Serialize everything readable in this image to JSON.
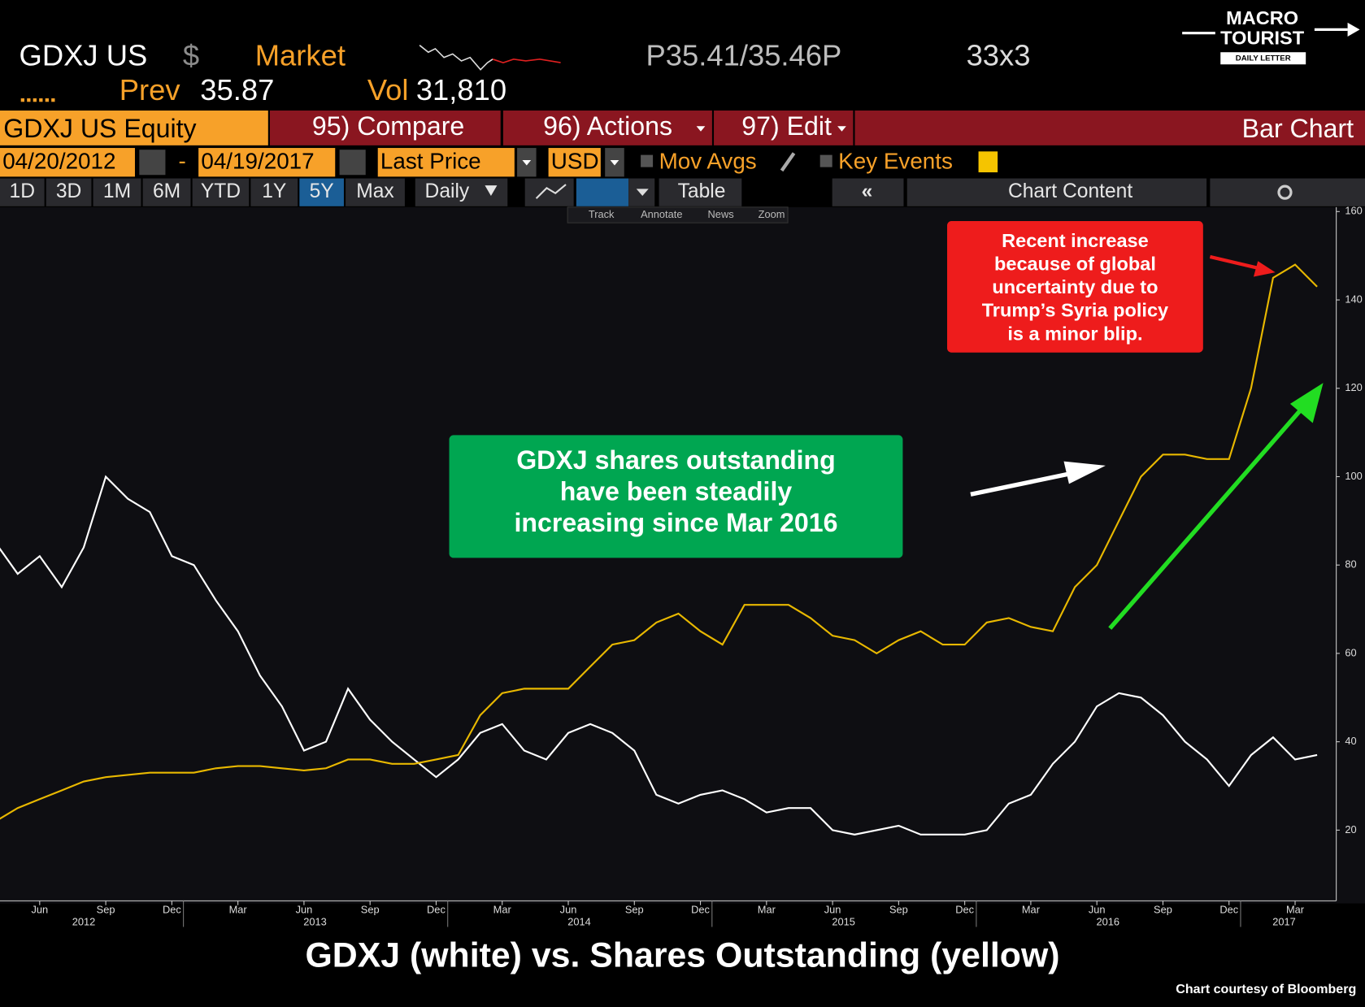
{
  "header": {
    "ticker": "GDXJ US",
    "currency": "$",
    "source": "Market",
    "quote": "P35.41/35.46P",
    "size": "33x3",
    "prev_label": "Prev",
    "prev": "35.87",
    "vol_label": "Vol",
    "vol": "31,810"
  },
  "logo": {
    "line1": "MACRO",
    "line2": "TOURIST",
    "line3": "DAILY LETTER"
  },
  "toolbar": {
    "security": "GDXJ US Equity",
    "compare": "95) Compare",
    "actions": "96) Actions",
    "edit": "97) Edit",
    "chart_kind": "Bar Chart",
    "start_date": "04/20/2012",
    "date_sep": "-",
    "end_date": "04/19/2017",
    "field": "Last Price",
    "ccy": "USD",
    "mov_avgs": "Mov Avgs",
    "key_events": "Key Events",
    "ranges": [
      "1D",
      "3D",
      "1M",
      "6M",
      "YTD",
      "1Y",
      "5Y",
      "Max"
    ],
    "frequency": "Daily",
    "table": "Table",
    "chart_content": "Chart Content",
    "tools": [
      "Track",
      "Annotate",
      "News",
      "Zoom"
    ]
  },
  "chart_data": {
    "type": "line",
    "title": "GDXJ (white) vs. Shares Outstanding (yellow)",
    "credit": "Chart courtesy of Bloomberg",
    "annotations": [
      {
        "lines": [
          "Recent increase",
          "because of global",
          "uncertainty due to",
          "Trump’s Syria policy",
          "is a minor blip."
        ],
        "color": "#ee1c1c"
      },
      {
        "lines": [
          "GDXJ shares outstanding",
          "have been steadily",
          "increasing since Mar 2016"
        ],
        "color": "#00a651"
      }
    ],
    "x": [
      "2012-04",
      "2012-05",
      "2012-06",
      "2012-07",
      "2012-08",
      "2012-09",
      "2012-10",
      "2012-11",
      "2012-12",
      "2013-01",
      "2013-02",
      "2013-03",
      "2013-04",
      "2013-05",
      "2013-06",
      "2013-07",
      "2013-08",
      "2013-09",
      "2013-10",
      "2013-11",
      "2013-12",
      "2014-01",
      "2014-02",
      "2014-03",
      "2014-04",
      "2014-05",
      "2014-06",
      "2014-07",
      "2014-08",
      "2014-09",
      "2014-10",
      "2014-11",
      "2014-12",
      "2015-01",
      "2015-02",
      "2015-03",
      "2015-04",
      "2015-05",
      "2015-06",
      "2015-07",
      "2015-08",
      "2015-09",
      "2015-10",
      "2015-11",
      "2015-12",
      "2016-01",
      "2016-02",
      "2016-03",
      "2016-04",
      "2016-05",
      "2016-06",
      "2016-07",
      "2016-08",
      "2016-09",
      "2016-10",
      "2016-11",
      "2016-12",
      "2017-01",
      "2017-02",
      "2017-03",
      "2017-04"
    ],
    "series": [
      {
        "color": "#ffffff",
        "values": [
          85,
          78,
          82,
          75,
          84,
          100,
          95,
          92,
          82,
          80,
          72,
          65,
          55,
          48,
          38,
          40,
          52,
          45,
          40,
          36,
          32,
          36,
          42,
          44,
          38,
          36,
          42,
          44,
          42,
          38,
          28,
          26,
          28,
          29,
          27,
          24,
          25,
          25,
          20,
          19,
          20,
          21,
          19,
          19,
          19,
          20,
          26,
          28,
          35,
          40,
          48,
          51,
          50,
          46,
          40,
          36,
          30,
          37,
          41,
          36,
          37
        ]
      },
      {
        "color": "#e8b800",
        "values": [
          22,
          25,
          27,
          29,
          31,
          32,
          32.5,
          33,
          33,
          33,
          34,
          34.5,
          34.5,
          34,
          33.5,
          34,
          36,
          36,
          35,
          35,
          36,
          37,
          46,
          51,
          52,
          52,
          52,
          57,
          62,
          63,
          67,
          69,
          65,
          62,
          71,
          71,
          71,
          68,
          64,
          63,
          60,
          63,
          65,
          62,
          62,
          67,
          68,
          66,
          65,
          75,
          80,
          90,
          100,
          105,
          105,
          104,
          104,
          120,
          145,
          148,
          143
        ]
      }
    ],
    "xlim": [
      "2012-04",
      "2017-04"
    ],
    "xticks": [
      {
        "value": "2012-06",
        "label": "Jun"
      },
      {
        "value": "2012-09",
        "label": "Sep"
      },
      {
        "value": "2012-12",
        "label": "Dec"
      },
      {
        "value": "2013-03",
        "label": "Mar"
      },
      {
        "value": "2013-06",
        "label": "Jun"
      },
      {
        "value": "2013-09",
        "label": "Sep"
      },
      {
        "value": "2013-12",
        "label": "Dec"
      },
      {
        "value": "2014-03",
        "label": "Mar"
      },
      {
        "value": "2014-06",
        "label": "Jun"
      },
      {
        "value": "2014-09",
        "label": "Sep"
      },
      {
        "value": "2014-12",
        "label": "Dec"
      },
      {
        "value": "2015-03",
        "label": "Mar"
      },
      {
        "value": "2015-06",
        "label": "Jun"
      },
      {
        "value": "2015-09",
        "label": "Sep"
      },
      {
        "value": "2015-12",
        "label": "Dec"
      },
      {
        "value": "2016-03",
        "label": "Mar"
      },
      {
        "value": "2016-06",
        "label": "Jun"
      },
      {
        "value": "2016-09",
        "label": "Sep"
      },
      {
        "value": "2016-12",
        "label": "Dec"
      },
      {
        "value": "2017-03",
        "label": "Mar"
      }
    ],
    "x_years": [
      "2012",
      "2013",
      "2014",
      "2015",
      "2016",
      "2017"
    ],
    "ylim": [
      4,
      161
    ],
    "yticks": [
      20,
      40,
      60,
      80,
      100,
      120,
      140,
      160
    ]
  }
}
